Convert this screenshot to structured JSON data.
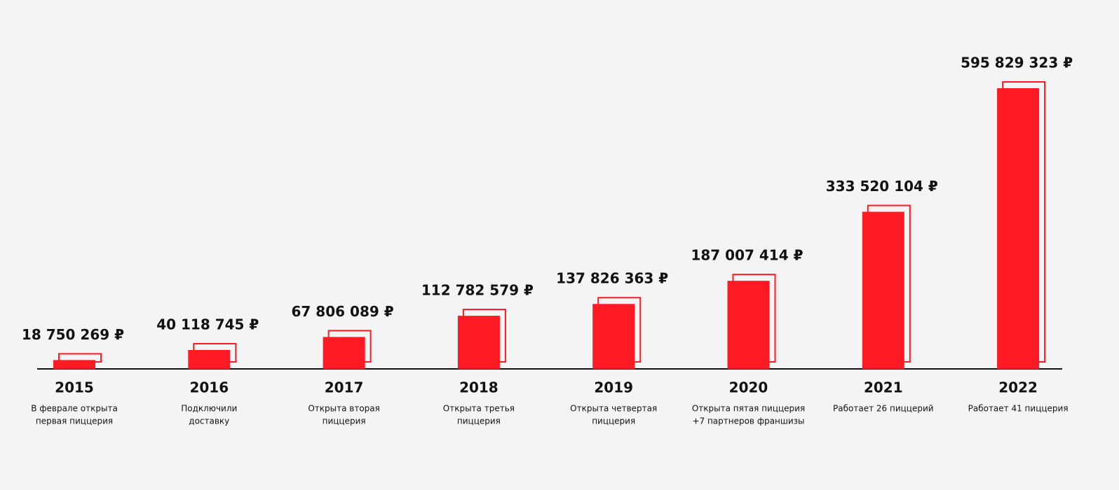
{
  "chart_data": {
    "type": "bar",
    "categories": [
      "2015",
      "2016",
      "2017",
      "2018",
      "2019",
      "2020",
      "2021",
      "2022"
    ],
    "values": [
      18750269,
      40118745,
      67806089,
      112782579,
      137826363,
      187007414,
      333520104,
      595829323
    ],
    "value_labels": [
      "18 750 269 ₽",
      "40 118 745 ₽",
      "67 806 089 ₽",
      "112 782 579 ₽",
      "137 826 363 ₽",
      "187 007 414 ₽",
      "333 520 104 ₽",
      "595 829 323 ₽"
    ],
    "descriptions": [
      [
        "В феврале открыта",
        "первая пиццерия"
      ],
      [
        "Подключили",
        "доставку"
      ],
      [
        "Открыта вторая",
        "пиццерия"
      ],
      [
        "Открыта третья",
        "пиццерия"
      ],
      [
        "Открыта четвертая",
        "пиццерия"
      ],
      [
        "Открыта пятая пиццерия",
        "+7 партнеров франшизы"
      ],
      [
        "Работает 26 пиццерий"
      ],
      [
        "Работает 41 пиццерия"
      ]
    ],
    "color": "#ff1a24"
  }
}
